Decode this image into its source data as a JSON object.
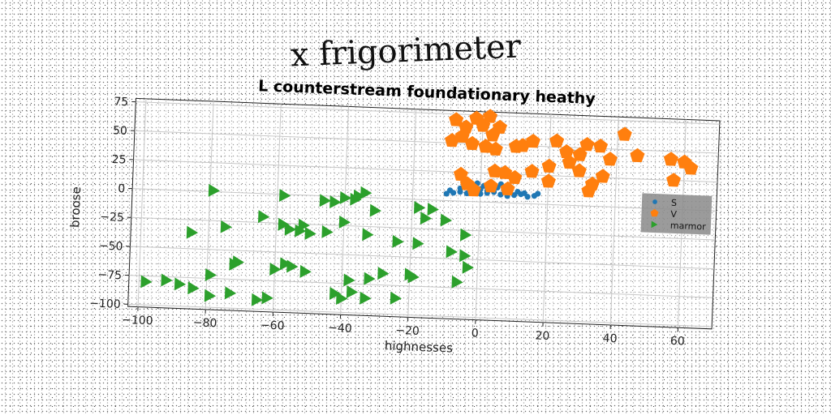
{
  "figure": {
    "title": "x frigorimeter"
  },
  "chart_data": {
    "type": "scatter",
    "title": "L counterstream foundationary heathy",
    "xlabel": "highnesses",
    "ylabel": "broose",
    "xlim": [
      -103,
      70
    ],
    "ylim": [
      -102,
      78
    ],
    "xticks": [
      -100,
      -80,
      -60,
      -40,
      -20,
      0,
      20,
      40,
      60
    ],
    "yticks": [
      75,
      50,
      25,
      0,
      -25,
      -50,
      -75,
      -100
    ],
    "grid": true,
    "legend_position": "right",
    "series": [
      {
        "name": "S",
        "marker": "circle",
        "color": "#1f77b4",
        "points": [
          [
            -10,
            6
          ],
          [
            -8,
            7
          ],
          [
            -6,
            8
          ],
          [
            -4,
            7
          ],
          [
            -2,
            8
          ],
          [
            0,
            7
          ],
          [
            2,
            8
          ],
          [
            4,
            9
          ],
          [
            6,
            7
          ],
          [
            8,
            6
          ],
          [
            10,
            7
          ],
          [
            12,
            8
          ],
          [
            14,
            6
          ],
          [
            16,
            7
          ],
          [
            -3,
            12
          ],
          [
            1,
            14
          ],
          [
            5,
            13
          ],
          [
            -6,
            11
          ],
          [
            9,
            12
          ],
          [
            -1,
            16
          ],
          [
            3,
            17
          ],
          [
            6,
            16
          ],
          [
            -4,
            15
          ],
          [
            0,
            11
          ],
          [
            7,
            11
          ],
          [
            11,
            10
          ],
          [
            17,
            9
          ],
          [
            -9,
            9
          ],
          [
            2,
            10
          ],
          [
            13,
            9
          ],
          [
            4,
            13
          ],
          [
            -2,
            13
          ]
        ]
      },
      {
        "name": "V",
        "marker": "pentagon",
        "color": "#ff7f0e",
        "points": [
          [
            -8,
            70
          ],
          [
            -5,
            64
          ],
          [
            -2,
            72
          ],
          [
            0,
            66
          ],
          [
            2,
            74
          ],
          [
            3,
            58
          ],
          [
            5,
            65
          ],
          [
            -6,
            56
          ],
          [
            -9,
            52
          ],
          [
            -3,
            50
          ],
          [
            1,
            48
          ],
          [
            4,
            46
          ],
          [
            10,
            49
          ],
          [
            12,
            50
          ],
          [
            15,
            54
          ],
          [
            22,
            55
          ],
          [
            25,
            46
          ],
          [
            29,
            44
          ],
          [
            31,
            53
          ],
          [
            35,
            52
          ],
          [
            38,
            41
          ],
          [
            42,
            63
          ],
          [
            46,
            45
          ],
          [
            56,
            43
          ],
          [
            60,
            41
          ],
          [
            62,
            36
          ],
          [
            57,
            25
          ],
          [
            36,
            26
          ],
          [
            33,
            19
          ],
          [
            32,
            13
          ],
          [
            -6,
            23
          ],
          [
            -4,
            15
          ],
          [
            4,
            27
          ],
          [
            7,
            26
          ],
          [
            15,
            28
          ],
          [
            20,
            33
          ],
          [
            26,
            37
          ],
          [
            29,
            30
          ],
          [
            20,
            20
          ],
          [
            10,
            22
          ],
          [
            8,
            12
          ],
          [
            -2,
            10
          ],
          [
            3,
            14
          ]
        ]
      },
      {
        "name": "marmor",
        "marker": "triangle-right",
        "color": "#2ca02c",
        "points": [
          [
            -79,
            1
          ],
          [
            -58,
            -1
          ],
          [
            -40,
            -1
          ],
          [
            -37,
            -2
          ],
          [
            -34,
            4
          ],
          [
            -36,
            1
          ],
          [
            -43,
            -5
          ],
          [
            -46,
            -4
          ],
          [
            -31,
            -11
          ],
          [
            -18,
            -7
          ],
          [
            -14,
            -8
          ],
          [
            -10,
            -17
          ],
          [
            -16,
            -16
          ],
          [
            -4,
            -29
          ],
          [
            -40,
            -22
          ],
          [
            -52,
            -26
          ],
          [
            -58,
            -26
          ],
          [
            -56,
            -30
          ],
          [
            -53,
            -31
          ],
          [
            -50,
            -33
          ],
          [
            -45,
            -31
          ],
          [
            -33,
            -32
          ],
          [
            -64,
            -20
          ],
          [
            -75,
            -30
          ],
          [
            -85,
            -36
          ],
          [
            -18,
            -38
          ],
          [
            -24,
            -37
          ],
          [
            -8,
            -44
          ],
          [
            -4,
            -47
          ],
          [
            -72,
            -62
          ],
          [
            -71,
            -60
          ],
          [
            -57,
            -60
          ],
          [
            -55,
            -62
          ],
          [
            -51,
            -66
          ],
          [
            -38,
            -72
          ],
          [
            -28,
            -65
          ],
          [
            -32,
            -70
          ],
          [
            -19,
            -67
          ],
          [
            -20,
            -65
          ],
          [
            -6,
            -70
          ],
          [
            -3,
            -57
          ],
          [
            -98,
            -80
          ],
          [
            -92,
            -78
          ],
          [
            -88,
            -81
          ],
          [
            -84,
            -84
          ],
          [
            -79,
            -90
          ],
          [
            -73,
            -87
          ],
          [
            -65,
            -92
          ],
          [
            -62,
            -90
          ],
          [
            -42,
            -84
          ],
          [
            -40,
            -88
          ],
          [
            -33,
            -87
          ],
          [
            -24,
            -86
          ],
          [
            -37,
            -82
          ],
          [
            -60,
            -65
          ],
          [
            -79,
            -72
          ]
        ]
      }
    ]
  }
}
